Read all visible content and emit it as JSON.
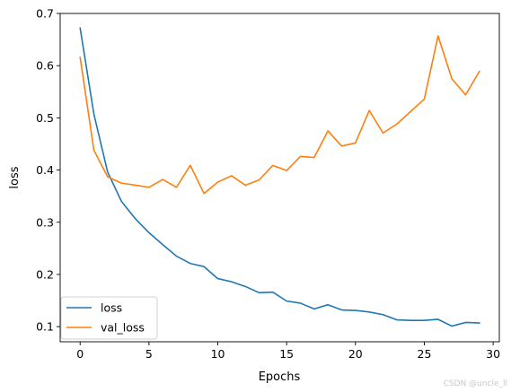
{
  "chart_data": {
    "type": "line",
    "xlabel": "Epochs",
    "ylabel": "loss",
    "xlim": [
      -1.45,
      30.45
    ],
    "ylim": [
      0.071,
      0.7
    ],
    "xticks": [
      0,
      5,
      10,
      15,
      20,
      25,
      30
    ],
    "yticks": [
      0.1,
      0.2,
      0.3,
      0.4,
      0.5,
      0.6,
      0.7
    ],
    "grid": false,
    "legend_position": "lower-left",
    "x": [
      0,
      1,
      2,
      3,
      4,
      5,
      6,
      7,
      8,
      9,
      10,
      11,
      12,
      13,
      14,
      15,
      16,
      17,
      18,
      19,
      20,
      21,
      22,
      23,
      24,
      25,
      26,
      27,
      28,
      29
    ],
    "series": [
      {
        "name": "loss",
        "color": "#1f77b4",
        "values": [
          0.672,
          0.507,
          0.396,
          0.34,
          0.307,
          0.28,
          0.257,
          0.235,
          0.221,
          0.215,
          0.192,
          0.186,
          0.177,
          0.165,
          0.166,
          0.149,
          0.145,
          0.134,
          0.142,
          0.132,
          0.131,
          0.128,
          0.123,
          0.113,
          0.112,
          0.112,
          0.114,
          0.101,
          0.108,
          0.107
        ]
      },
      {
        "name": "val_loss",
        "color": "#ff7f0e",
        "values": [
          0.616,
          0.438,
          0.387,
          0.375,
          0.371,
          0.367,
          0.382,
          0.367,
          0.409,
          0.355,
          0.377,
          0.389,
          0.371,
          0.381,
          0.409,
          0.399,
          0.426,
          0.424,
          0.475,
          0.446,
          0.452,
          0.514,
          0.471,
          0.488,
          0.512,
          0.536,
          0.657,
          0.575,
          0.544,
          0.589
        ]
      }
    ]
  },
  "watermark": "CSDN @uncle_ll"
}
